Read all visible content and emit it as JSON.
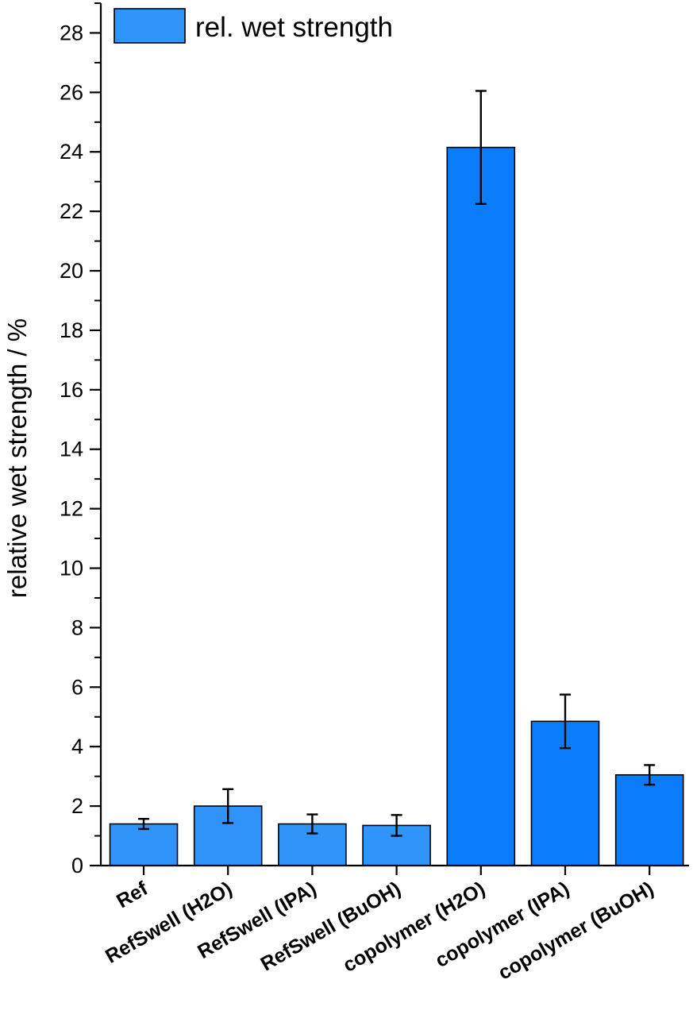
{
  "chart_data": {
    "type": "bar",
    "title": "",
    "xlabel": "",
    "ylabel": "relative wet strength / %",
    "ylim": [
      0,
      29
    ],
    "yticks": [
      0,
      2,
      4,
      6,
      8,
      10,
      12,
      14,
      16,
      18,
      20,
      22,
      24,
      26,
      28
    ],
    "categories": [
      "Ref",
      "RefSwell (H2O)",
      "RefSwell (IPA)",
      "RefSwell (BuOH)",
      "copolymer (H2O)",
      "copolymer (IPA)",
      "copolymer (BuOH)"
    ],
    "series": [
      {
        "name": "rel. wet strength",
        "values": [
          1.4,
          2.0,
          1.4,
          1.35,
          24.15,
          4.85,
          3.05
        ],
        "errors": [
          0.17,
          0.57,
          0.32,
          0.35,
          1.9,
          0.9,
          0.33
        ],
        "colors": [
          "#2f95fb",
          "#2f95fb",
          "#2f95fb",
          "#2f95fb",
          "#0b7dfb",
          "#0b7dfb",
          "#0b7dfb"
        ]
      }
    ],
    "grid": false,
    "legend": "top-left"
  }
}
